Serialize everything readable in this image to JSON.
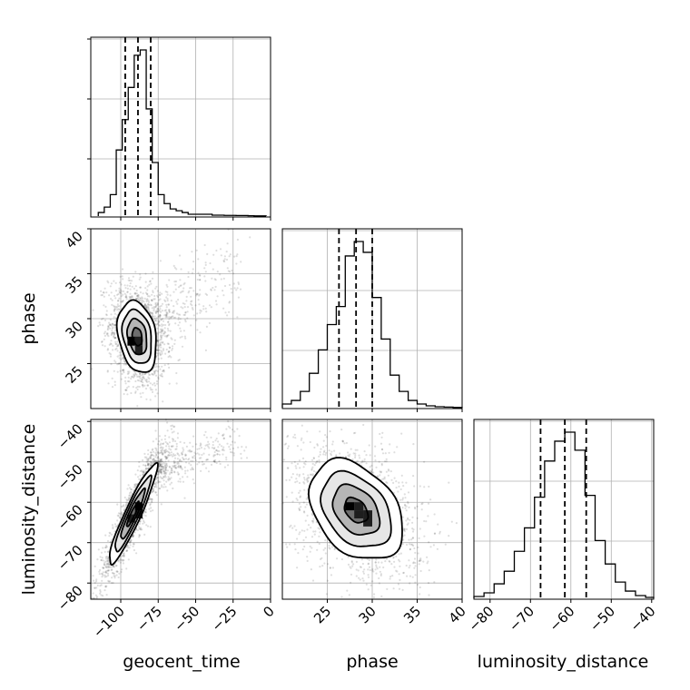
{
  "chart_data": {
    "type": "corner",
    "parameters": [
      "geocent_time",
      "phase",
      "luminosity_distance"
    ],
    "axis_labels": {
      "geocent_time": "geocent_time",
      "phase": "phase",
      "luminosity_distance": "luminosity_distance"
    },
    "ranges": {
      "geocent_time": [
        -120,
        0
      ],
      "phase": [
        20,
        40
      ],
      "luminosity_distance": [
        -84,
        -39.5
      ]
    },
    "ticks": {
      "geocent_time": [
        -100,
        -75,
        -50,
        -25,
        0
      ],
      "phase": [
        25,
        30,
        35,
        40
      ],
      "luminosity_distance": [
        -80,
        -70,
        -60,
        -50,
        -40
      ]
    },
    "tick_labels": {
      "geocent_time": [
        "−100",
        "−75",
        "−50",
        "−25",
        "0"
      ],
      "phase": [
        "25",
        "30",
        "35",
        "40"
      ],
      "luminosity_distance": [
        "−80",
        "−70",
        "−60",
        "−50",
        "−40"
      ]
    },
    "quantiles": {
      "geocent_time": [
        -97,
        -88.5,
        -80
      ],
      "phase": [
        26.3,
        28.2,
        30.0
      ],
      "luminosity_distance": [
        -67.5,
        -61.5,
        -56.2
      ]
    },
    "histograms": {
      "geocent_time": {
        "edges": [
          -115,
          -111,
          -107,
          -103,
          -99,
          -95,
          -91,
          -87,
          -83,
          -79,
          -75,
          -71,
          -67,
          -63,
          -59,
          -55,
          -51,
          -47,
          -43,
          -39,
          -35,
          -31,
          -27,
          -23,
          -19,
          -15,
          -11,
          -7,
          -3
        ],
        "counts": [
          0.02,
          0.05,
          0.12,
          0.37,
          0.54,
          0.72,
          0.9,
          0.93,
          0.6,
          0.3,
          0.12,
          0.07,
          0.04,
          0.03,
          0.02,
          0.01,
          0.01,
          0.01,
          0.01,
          0.005,
          0.005,
          0.004,
          0.004,
          0.003,
          0.003,
          0.002,
          0.001,
          0.001
        ]
      },
      "phase": {
        "edges": [
          20,
          21,
          22,
          23,
          24,
          25,
          26,
          27,
          28,
          29,
          30,
          31,
          32,
          33,
          34,
          35,
          36,
          37,
          38,
          39,
          40
        ],
        "counts": [
          0.02,
          0.04,
          0.09,
          0.19,
          0.32,
          0.46,
          0.56,
          0.84,
          0.92,
          0.86,
          0.61,
          0.38,
          0.18,
          0.09,
          0.04,
          0.02,
          0.01,
          0.005,
          0.003,
          0.001
        ]
      },
      "luminosity_distance": {
        "edges": [
          -84,
          -81.5,
          -79,
          -76.5,
          -74,
          -71.5,
          -69,
          -66.5,
          -64,
          -61.5,
          -59,
          -56.5,
          -54,
          -51.5,
          -49,
          -46.5,
          -44,
          -41.5,
          -39.5
        ],
        "counts": [
          0.01,
          0.03,
          0.08,
          0.15,
          0.26,
          0.39,
          0.56,
          0.76,
          0.87,
          0.92,
          0.82,
          0.57,
          0.32,
          0.19,
          0.09,
          0.04,
          0.015,
          0.005
        ]
      }
    },
    "pair_panels": [
      {
        "x": "geocent_time",
        "y": "phase",
        "center": [
          -89,
          28.0
        ],
        "sd": [
          6.5,
          2.0
        ],
        "corr": -0.25,
        "tail": {
          "from": [
            -80,
            29
          ],
          "to": [
            -20,
            36
          ]
        },
        "peak_bins": [
          [
            -93,
            27.5
          ],
          [
            -88,
            27.5
          ],
          [
            -88,
            26.5
          ]
        ]
      },
      {
        "x": "geocent_time",
        "y": "luminosity_distance",
        "center": [
          -92,
          -63
        ],
        "sd": [
          8.0,
          6.2
        ],
        "corr": 0.93,
        "tail": {
          "from": [
            -78,
            -52
          ],
          "to": [
            -20,
            -45
          ]
        },
        "peak_bins": [
          [
            -88,
            -61
          ],
          [
            -88,
            -63
          ],
          [
            -93,
            -64
          ]
        ]
      },
      {
        "x": "phase",
        "y": "luminosity_distance",
        "center": [
          28.2,
          -62.0
        ],
        "sd": [
          2.6,
          6.2
        ],
        "corr": -0.35,
        "tail": null,
        "peak_bins": [
          [
            27.5,
            -61
          ],
          [
            28.5,
            -61
          ],
          [
            28.5,
            -63
          ],
          [
            29.5,
            -63
          ],
          [
            29.5,
            -65
          ]
        ]
      }
    ],
    "contour_levels": [
      0.5,
      1.0,
      1.5,
      2.0
    ],
    "grid": true,
    "colors": {
      "line": "#000000",
      "grid": "#b0b0b0",
      "scatter": "#000000",
      "panel_edge": "#000000"
    }
  }
}
